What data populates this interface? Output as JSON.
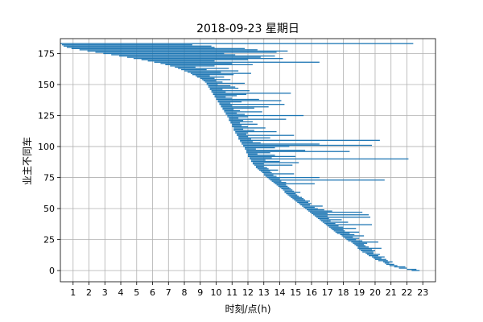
{
  "chart_data": {
    "type": "bar",
    "orientation": "horizontal",
    "title": "2018-09-23 星期日",
    "xlabel": "时刻/点(h)",
    "ylabel": "业主不同车",
    "xlim": [
      0.2,
      23.8
    ],
    "ylim": [
      -9,
      187
    ],
    "x_ticks": [
      1,
      2,
      3,
      4,
      5,
      6,
      7,
      8,
      9,
      10,
      11,
      12,
      13,
      14,
      15,
      16,
      17,
      18,
      19,
      20,
      21,
      22,
      23
    ],
    "y_ticks": [
      0,
      25,
      50,
      75,
      100,
      125,
      150,
      175
    ],
    "grid": true,
    "bar_color": "#1f77b4",
    "series": [
      {
        "bars": [
          [
            22.3,
            22.8
          ],
          [
            22.0,
            22.6
          ],
          [
            21.5,
            22.0
          ],
          [
            21.2,
            21.9
          ],
          [
            20.9,
            21.4
          ],
          [
            20.7,
            21.2
          ],
          [
            20.6,
            20.9
          ],
          [
            20.5,
            21.1
          ],
          [
            20.2,
            20.8
          ],
          [
            20.0,
            20.7
          ],
          [
            19.9,
            20.4
          ],
          [
            19.8,
            20.6
          ],
          [
            19.6,
            20.2
          ],
          [
            19.5,
            20.3
          ],
          [
            19.4,
            19.9
          ],
          [
            19.2,
            19.9
          ],
          [
            19.1,
            20.0
          ],
          [
            19.0,
            19.8
          ],
          [
            18.9,
            20.4
          ],
          [
            18.9,
            19.6
          ],
          [
            18.8,
            19.4
          ],
          [
            18.7,
            19.3
          ],
          [
            18.6,
            19.5
          ],
          [
            18.5,
            20.2
          ],
          [
            18.3,
            19.2
          ],
          [
            18.2,
            18.8
          ],
          [
            18.1,
            19.0
          ],
          [
            18.0,
            18.6
          ],
          [
            17.9,
            19.3
          ],
          [
            17.8,
            18.7
          ],
          [
            17.6,
            18.4
          ],
          [
            17.5,
            19.0
          ],
          [
            17.4,
            18.1
          ],
          [
            17.3,
            18.0
          ],
          [
            17.2,
            18.8
          ],
          [
            17.1,
            18.0
          ],
          [
            17.0,
            17.7
          ],
          [
            16.9,
            19.8
          ],
          [
            16.8,
            17.5
          ],
          [
            16.7,
            18.3
          ],
          [
            16.6,
            17.2
          ],
          [
            16.5,
            17.9
          ],
          [
            16.4,
            17.1
          ],
          [
            16.3,
            19.7
          ],
          [
            16.2,
            17.0
          ],
          [
            16.1,
            19.6
          ],
          [
            16.0,
            17.0
          ],
          [
            15.9,
            19.2
          ],
          [
            15.8,
            17.3
          ],
          [
            15.7,
            16.8
          ],
          [
            15.6,
            16.4
          ],
          [
            15.5,
            16.2
          ],
          [
            15.4,
            16.7
          ],
          [
            15.3,
            15.9
          ],
          [
            15.2,
            16.0
          ],
          [
            15.1,
            15.8
          ],
          [
            15.0,
            15.9
          ],
          [
            14.9,
            15.6
          ],
          [
            14.8,
            15.5
          ],
          [
            14.7,
            15.4
          ],
          [
            14.6,
            15.2
          ],
          [
            14.5,
            15.1
          ],
          [
            14.4,
            15.0
          ],
          [
            14.3,
            15.3
          ],
          [
            14.3,
            14.9
          ],
          [
            14.2,
            14.8
          ],
          [
            14.1,
            14.7
          ],
          [
            14.0,
            14.6
          ],
          [
            13.9,
            14.5
          ],
          [
            13.8,
            14.4
          ],
          [
            13.7,
            16.2
          ],
          [
            13.6,
            14.4
          ],
          [
            13.5,
            14.1
          ],
          [
            13.4,
            20.6
          ],
          [
            13.3,
            14.0
          ],
          [
            13.2,
            16.5
          ],
          [
            13.1,
            13.8
          ],
          [
            13.0,
            13.6
          ],
          [
            13.0,
            14.9
          ],
          [
            12.9,
            13.5
          ],
          [
            12.8,
            13.4
          ],
          [
            12.7,
            13.9
          ],
          [
            12.6,
            13.3
          ],
          [
            12.5,
            13.2
          ],
          [
            12.5,
            13.0
          ],
          [
            12.4,
            14.8
          ],
          [
            12.3,
            13.0
          ],
          [
            12.3,
            15.2
          ],
          [
            12.2,
            14.0
          ],
          [
            12.2,
            13.1
          ],
          [
            12.1,
            22.1
          ],
          [
            12.1,
            13.5
          ],
          [
            12.0,
            15.0
          ],
          [
            12.0,
            13.7
          ],
          [
            12.0,
            12.6
          ],
          [
            11.9,
            13.4
          ],
          [
            11.9,
            18.4
          ],
          [
            11.9,
            15.6
          ],
          [
            11.8,
            12.5
          ],
          [
            11.8,
            13.7
          ],
          [
            11.7,
            14.6
          ],
          [
            11.7,
            19.8
          ],
          [
            11.6,
            16.5
          ],
          [
            11.6,
            12.8
          ],
          [
            11.5,
            12.3
          ],
          [
            11.5,
            20.3
          ],
          [
            11.4,
            12.2
          ],
          [
            11.4,
            13.4
          ],
          [
            11.4,
            12.0
          ],
          [
            11.3,
            14.9
          ],
          [
            11.3,
            11.9
          ],
          [
            11.2,
            12.0
          ],
          [
            11.2,
            13.8
          ],
          [
            11.1,
            12.4
          ],
          [
            11.1,
            11.7
          ],
          [
            11.1,
            13.1
          ],
          [
            11.0,
            12.0
          ],
          [
            11.0,
            11.6
          ],
          [
            11.0,
            12.6
          ],
          [
            10.9,
            11.5
          ],
          [
            10.9,
            12.3
          ],
          [
            10.8,
            11.7
          ],
          [
            10.8,
            14.4
          ],
          [
            10.8,
            11.4
          ],
          [
            10.7,
            12.0
          ],
          [
            10.7,
            15.5
          ],
          [
            10.6,
            11.8
          ],
          [
            10.6,
            11.3
          ],
          [
            10.5,
            12.9
          ],
          [
            10.5,
            11.5
          ],
          [
            10.4,
            11.1
          ],
          [
            10.4,
            12.4
          ],
          [
            10.3,
            13.3
          ],
          [
            10.3,
            11.0
          ],
          [
            10.2,
            14.3
          ],
          [
            10.2,
            10.9
          ],
          [
            10.1,
            11.6
          ],
          [
            10.1,
            14.1
          ],
          [
            10.0,
            12.7
          ],
          [
            10.0,
            11.0
          ],
          [
            9.9,
            10.6
          ],
          [
            9.9,
            11.3
          ],
          [
            9.8,
            11.9
          ],
          [
            9.8,
            14.7
          ],
          [
            9.7,
            10.6
          ],
          [
            9.7,
            12.1
          ],
          [
            9.6,
            10.4
          ],
          [
            9.6,
            11.4
          ],
          [
            9.5,
            11.2
          ],
          [
            9.5,
            10.9
          ],
          [
            9.4,
            10.1
          ],
          [
            9.4,
            11.8
          ],
          [
            9.3,
            10.4
          ],
          [
            9.2,
            10.0
          ],
          [
            9.1,
            10.9
          ],
          [
            9.0,
            9.9
          ],
          [
            8.8,
            10.5
          ],
          [
            8.7,
            9.6
          ],
          [
            8.5,
            11.1
          ],
          [
            8.4,
            12.2
          ],
          [
            8.2,
            10.3
          ],
          [
            8.0,
            11.4
          ],
          [
            7.8,
            9.4
          ],
          [
            7.6,
            10.8
          ],
          [
            7.4,
            8.7
          ],
          [
            7.1,
            9.9
          ],
          [
            6.8,
            12.3
          ],
          [
            6.5,
            11.0
          ],
          [
            6.1,
            16.5
          ],
          [
            5.7,
            9.9
          ],
          [
            5.3,
            12.0
          ],
          [
            4.8,
            14.2
          ],
          [
            4.4,
            12.8
          ],
          [
            3.9,
            13.7
          ],
          [
            3.4,
            11.2
          ],
          [
            2.9,
            10.5
          ],
          [
            2.4,
            13.8
          ],
          [
            1.9,
            14.5
          ],
          [
            1.4,
            12.6
          ],
          [
            0.9,
            11.8
          ],
          [
            0.6,
            9.9
          ],
          [
            0.4,
            9.7
          ],
          [
            0.3,
            8.5
          ],
          [
            0.2,
            22.4
          ]
        ]
      }
    ]
  }
}
